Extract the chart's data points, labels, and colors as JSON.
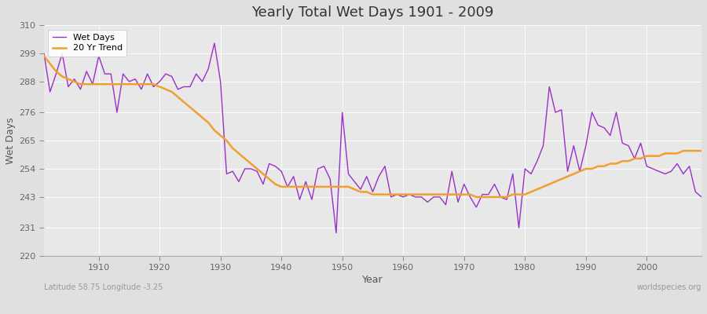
{
  "title": "Yearly Total Wet Days 1901 - 2009",
  "xlabel": "Year",
  "ylabel": "Wet Days",
  "bottom_left_text": "Latitude 58.75 Longitude -3.25",
  "bottom_right_text": "worldspecies.org",
  "ylim": [
    220,
    310
  ],
  "xlim": [
    1901,
    2009
  ],
  "yticks": [
    220,
    231,
    243,
    254,
    265,
    276,
    288,
    299,
    310
  ],
  "xticks": [
    1910,
    1920,
    1930,
    1940,
    1950,
    1960,
    1970,
    1980,
    1990,
    2000
  ],
  "fig_bg_color": "#e0e0e0",
  "plot_bg_color": "#e8e8e8",
  "wet_days_color": "#9b30c8",
  "trend_color": "#f0a030",
  "wet_days_linewidth": 1.0,
  "trend_linewidth": 1.8,
  "years": [
    1901,
    1902,
    1903,
    1904,
    1905,
    1906,
    1907,
    1908,
    1909,
    1910,
    1911,
    1912,
    1913,
    1914,
    1915,
    1916,
    1917,
    1918,
    1919,
    1920,
    1921,
    1922,
    1923,
    1924,
    1925,
    1926,
    1927,
    1928,
    1929,
    1930,
    1931,
    1932,
    1933,
    1934,
    1935,
    1936,
    1937,
    1938,
    1939,
    1940,
    1941,
    1942,
    1943,
    1944,
    1945,
    1946,
    1947,
    1948,
    1949,
    1950,
    1951,
    1952,
    1953,
    1954,
    1955,
    1956,
    1957,
    1958,
    1959,
    1960,
    1961,
    1962,
    1963,
    1964,
    1965,
    1966,
    1967,
    1968,
    1969,
    1970,
    1971,
    1972,
    1973,
    1974,
    1975,
    1976,
    1977,
    1978,
    1979,
    1980,
    1981,
    1982,
    1983,
    1984,
    1985,
    1986,
    1987,
    1988,
    1989,
    1990,
    1991,
    1992,
    1993,
    1994,
    1995,
    1996,
    1997,
    1998,
    1999,
    2000,
    2001,
    2002,
    2003,
    2004,
    2005,
    2006,
    2007,
    2008,
    2009
  ],
  "wet_days": [
    299,
    284,
    291,
    299,
    286,
    289,
    285,
    292,
    287,
    298,
    291,
    291,
    276,
    291,
    288,
    289,
    285,
    291,
    286,
    288,
    291,
    290,
    285,
    286,
    286,
    291,
    288,
    293,
    303,
    288,
    252,
    253,
    249,
    254,
    254,
    253,
    248,
    256,
    255,
    253,
    247,
    251,
    242,
    249,
    242,
    254,
    255,
    250,
    229,
    276,
    252,
    249,
    246,
    251,
    245,
    251,
    255,
    243,
    244,
    243,
    244,
    243,
    243,
    241,
    243,
    243,
    240,
    253,
    241,
    248,
    243,
    239,
    244,
    244,
    248,
    243,
    242,
    252,
    231,
    254,
    252,
    257,
    263,
    286,
    276,
    277,
    253,
    263,
    253,
    263,
    276,
    271,
    270,
    267,
    276,
    264,
    263,
    258,
    264,
    255,
    254,
    253,
    252,
    253,
    256,
    252,
    255,
    245,
    243
  ],
  "trend": [
    298,
    295,
    292,
    290,
    289,
    288,
    287,
    287,
    287,
    287,
    287,
    287,
    287,
    287,
    287,
    287,
    287,
    287,
    287,
    286,
    285,
    284,
    282,
    280,
    278,
    276,
    274,
    272,
    269,
    267,
    265,
    262,
    260,
    258,
    256,
    254,
    252,
    250,
    248,
    247,
    247,
    247,
    247,
    247,
    247,
    247,
    247,
    247,
    247,
    247,
    247,
    246,
    245,
    245,
    244,
    244,
    244,
    244,
    244,
    244,
    244,
    244,
    244,
    244,
    244,
    244,
    244,
    244,
    244,
    244,
    244,
    243,
    243,
    243,
    243,
    243,
    243,
    244,
    244,
    244,
    245,
    246,
    247,
    248,
    249,
    250,
    251,
    252,
    253,
    254,
    254,
    255,
    255,
    256,
    256,
    257,
    257,
    258,
    258,
    259,
    259,
    259,
    260,
    260,
    260,
    261,
    261,
    261,
    261
  ]
}
